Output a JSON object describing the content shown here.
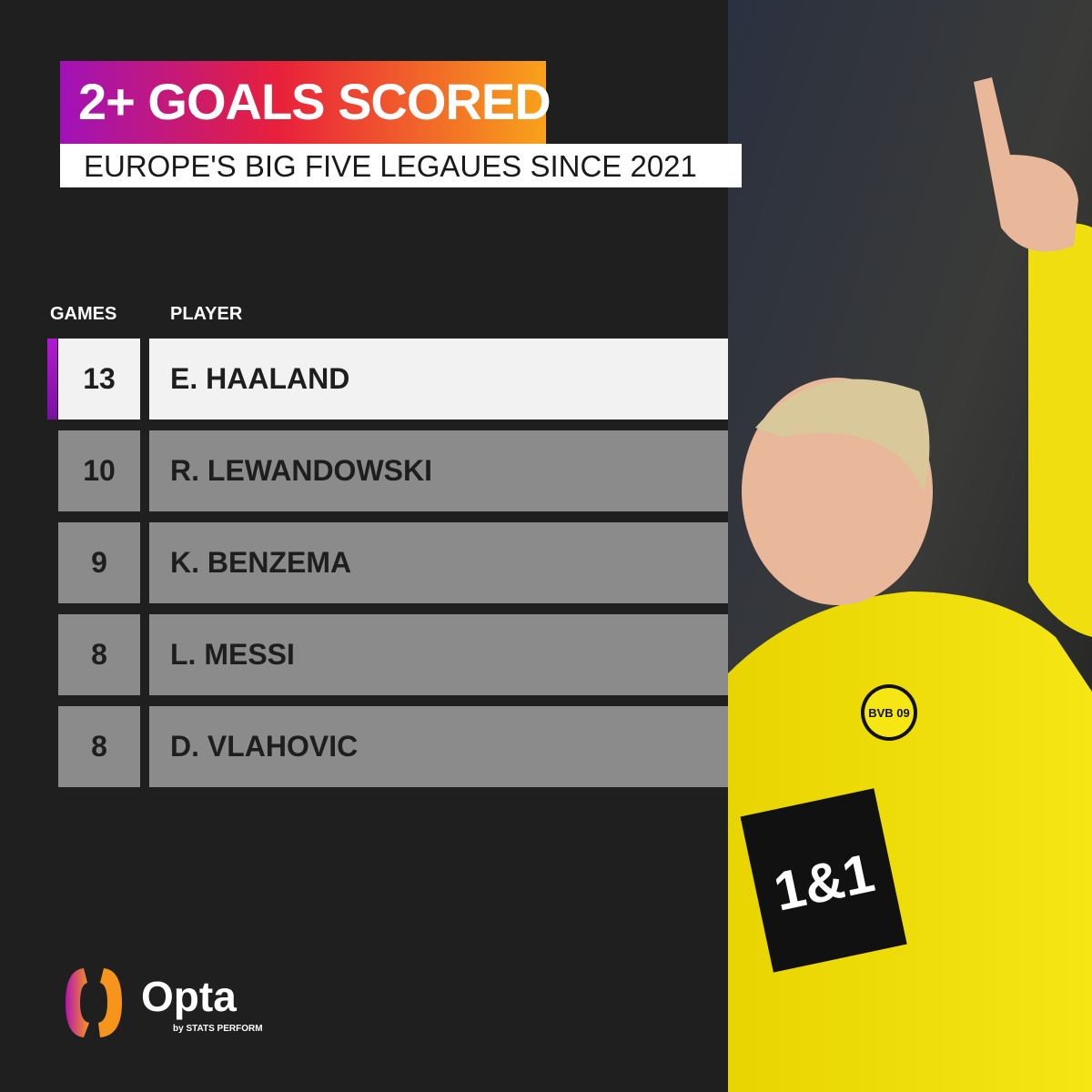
{
  "title": "2+ GOALS SCORED",
  "subtitle": "EUROPE'S  BIG FIVE LEGAUES SINCE 2021",
  "colors": {
    "accent_gradient": [
      "#a012b8",
      "#e8203a",
      "#f9a21a"
    ],
    "highlight_row": "#f2f2f2",
    "row": "#8b8b8b",
    "background": "#1f1f1f"
  },
  "chart_data": {
    "type": "table",
    "columns": [
      "GAMES",
      "PLAYER"
    ],
    "rows": [
      {
        "games": "13",
        "player": "E. HAALAND",
        "highlighted": true
      },
      {
        "games": "10",
        "player": "R. LEWANDOWSKI",
        "highlighted": false
      },
      {
        "games": "9",
        "player": "K. BENZEMA",
        "highlighted": false
      },
      {
        "games": "8",
        "player": "L. MESSI",
        "highlighted": false
      },
      {
        "games": "8",
        "player": "D. VLAHOVIC",
        "highlighted": false
      }
    ]
  },
  "logo": {
    "name": "Opta",
    "sub": "by STATS PERFORM"
  },
  "photo": {
    "shirt_sponsor": "1&1",
    "badge": "BVB 09"
  }
}
